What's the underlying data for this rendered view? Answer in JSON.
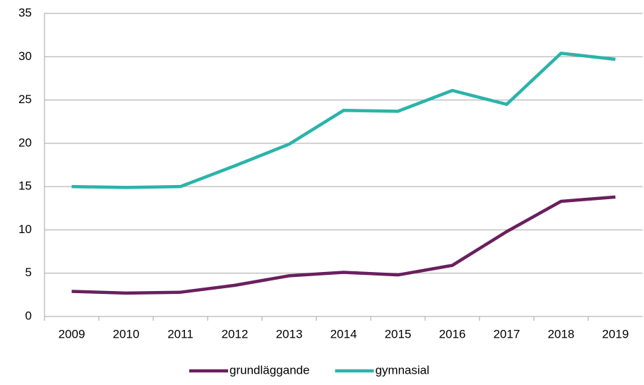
{
  "chart_data": {
    "type": "line",
    "categories": [
      "2009",
      "2010",
      "2011",
      "2012",
      "2013",
      "2014",
      "2015",
      "2016",
      "2017",
      "2018",
      "2019"
    ],
    "series": [
      {
        "name": "grundläggande",
        "color": "#6a1f5e",
        "values": [
          2.9,
          2.7,
          2.8,
          3.6,
          4.7,
          5.1,
          4.8,
          5.9,
          9.8,
          13.3,
          13.8
        ]
      },
      {
        "name": "gymnasial",
        "color": "#2bb3aa",
        "values": [
          15.0,
          14.9,
          15.0,
          17.4,
          19.9,
          23.8,
          23.7,
          26.1,
          24.5,
          30.4,
          29.7
        ]
      }
    ],
    "ylim": [
      0,
      35
    ],
    "yticks": [
      0,
      5,
      10,
      15,
      20,
      25,
      30,
      35
    ],
    "grid": true,
    "legend": "bottom"
  }
}
